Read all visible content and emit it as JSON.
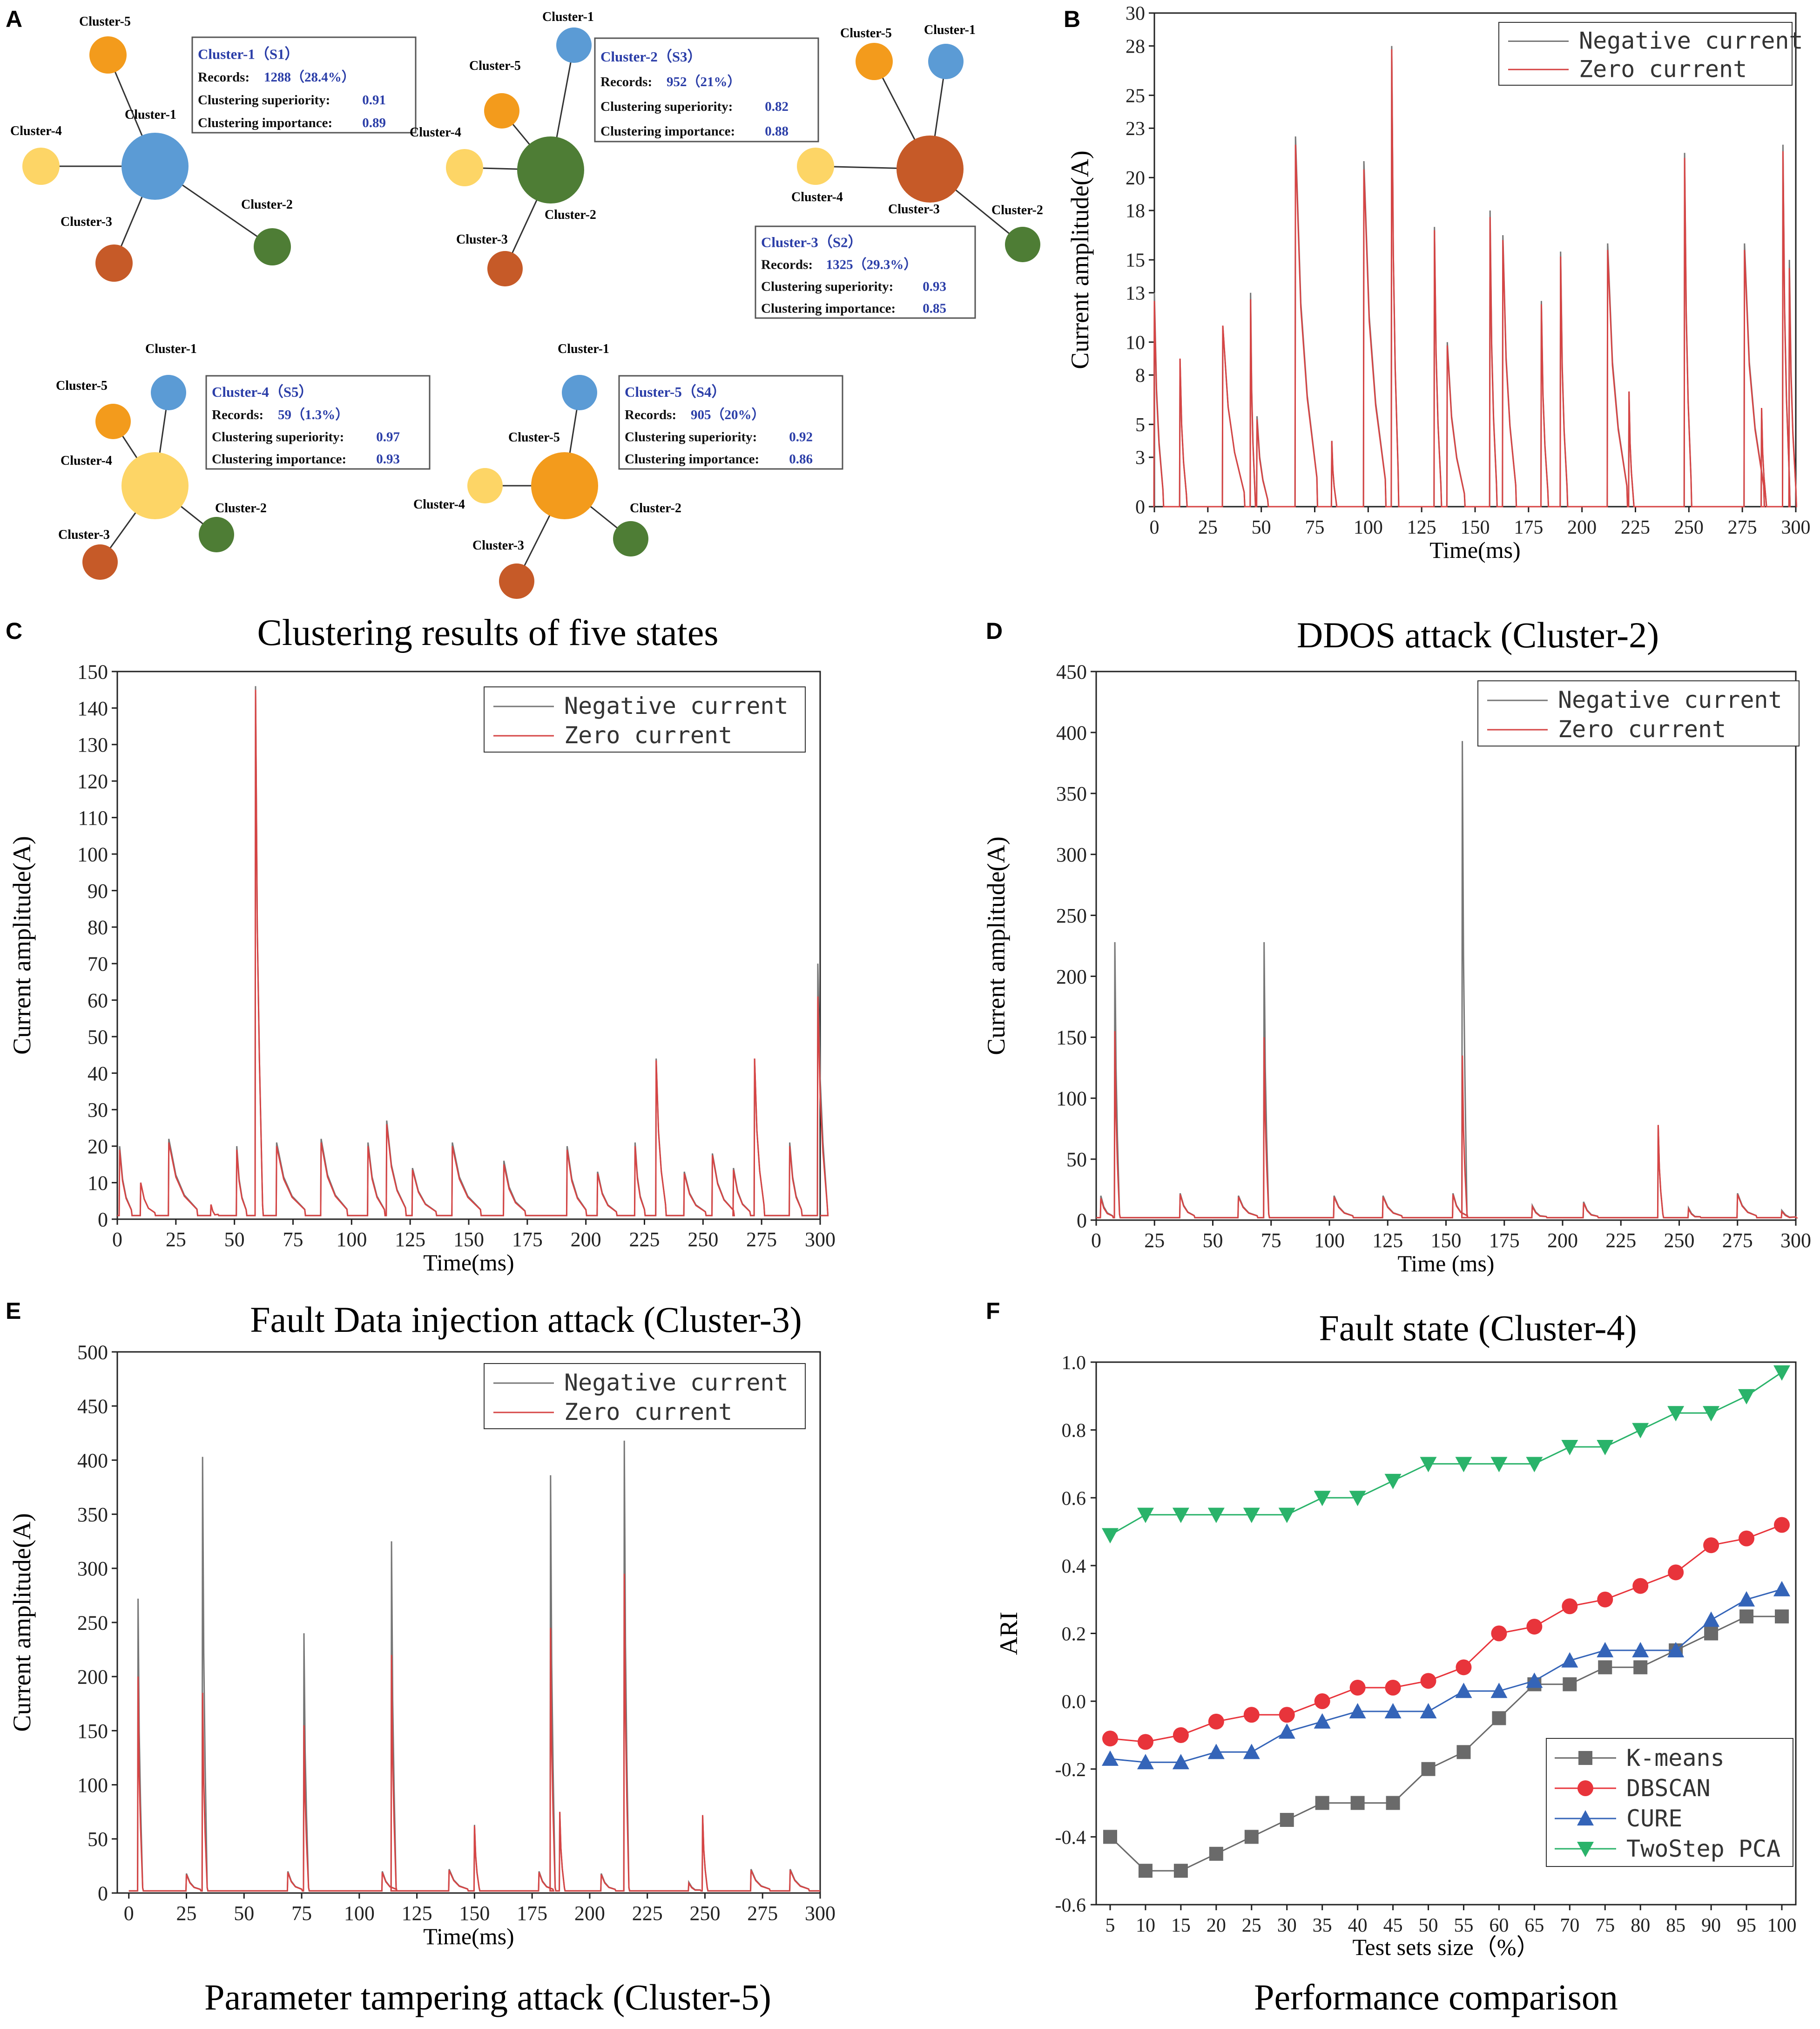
{
  "colors": {
    "blue": "#5b9bd5",
    "orange": "#f39b1c",
    "yellow": "#fdd566",
    "green": "#4e7d35",
    "rust": "#c65a28",
    "red_line": "#d64545",
    "gray_line": "#777777",
    "info_title": "#2b3ea8",
    "info_value": "#2b3ea8",
    "k_means": "#6a6a6a",
    "dbscan": "#e8343b",
    "cure": "#3464b8",
    "twostep": "#2ab36a"
  },
  "panel_labels": [
    "A",
    "B",
    "C",
    "D",
    "E",
    "F"
  ],
  "panelA": {
    "caption": "Clustering results of five states",
    "node_labels": [
      "Cluster-1",
      "Cluster-2",
      "Cluster-3",
      "Cluster-4",
      "Cluster-5"
    ],
    "info_field_labels": [
      "Records:",
      "Clustering superiority:",
      "Clustering importance:"
    ],
    "networks": [
      {
        "center": "Cluster-1",
        "title": "Cluster-1（S1）",
        "records": "1288（28.4%）",
        "superiority": "0.91",
        "importance": "0.89"
      },
      {
        "center": "Cluster-2",
        "title": "Cluster-2（S3）",
        "records": "952（21%）",
        "superiority": "0.82",
        "importance": "0.88"
      },
      {
        "center": "Cluster-3",
        "title": "Cluster-3（S2）",
        "records": "1325（29.3%）",
        "superiority": "0.93",
        "importance": "0.85"
      },
      {
        "center": "Cluster-4",
        "title": "Cluster-4（S5）",
        "records": "59（1.3%）",
        "superiority": "0.97",
        "importance": "0.93"
      },
      {
        "center": "Cluster-5",
        "title": "Cluster-5（S4）",
        "records": "905（20%）",
        "superiority": "0.92",
        "importance": "0.86"
      }
    ]
  },
  "chart_data": [
    {
      "panel": "B",
      "type": "line",
      "title": "DDOS  attack (Cluster-2)",
      "xlabel": "Time(ms)",
      "ylabel": "Current amplitude(A)",
      "xlim": [
        0,
        300
      ],
      "ylim": [
        0,
        30
      ],
      "xticks": [
        0,
        25,
        50,
        75,
        100,
        125,
        150,
        175,
        200,
        225,
        250,
        275,
        300
      ],
      "yticks": [
        0,
        3,
        5,
        8,
        10,
        13,
        15,
        18,
        20,
        23,
        25,
        28,
        30
      ],
      "legend": [
        "Negative current",
        "Zero current"
      ],
      "legend_position": "top-right",
      "baseline": 0,
      "spikes": [
        {
          "t": 0,
          "neg": 13,
          "zero": 12.5,
          "w": 4
        },
        {
          "t": 12,
          "neg": 9,
          "zero": 9,
          "w": 3
        },
        {
          "t": 32,
          "neg": 11,
          "zero": 11,
          "w": 10
        },
        {
          "t": 45,
          "neg": 13,
          "zero": 12.6,
          "w": 2
        },
        {
          "t": 48,
          "neg": 5.5,
          "zero": 5.3,
          "w": 5
        },
        {
          "t": 66,
          "neg": 22.5,
          "zero": 22,
          "w": 10
        },
        {
          "t": 83,
          "neg": 4,
          "zero": 4,
          "w": 2
        },
        {
          "t": 98,
          "neg": 21,
          "zero": 20.5,
          "w": 10
        },
        {
          "t": 111,
          "neg": 28,
          "zero": 27.8,
          "w": 3
        },
        {
          "t": 131,
          "neg": 17,
          "zero": 16.8,
          "w": 3
        },
        {
          "t": 137,
          "neg": 10,
          "zero": 9.8,
          "w": 8
        },
        {
          "t": 157,
          "neg": 18,
          "zero": 17.6,
          "w": 3
        },
        {
          "t": 163,
          "neg": 16.5,
          "zero": 16.2,
          "w": 6
        },
        {
          "t": 181,
          "neg": 12.5,
          "zero": 12.3,
          "w": 3
        },
        {
          "t": 190,
          "neg": 15.5,
          "zero": 15.2,
          "w": 3
        },
        {
          "t": 212,
          "neg": 16,
          "zero": 15.6,
          "w": 9
        },
        {
          "t": 222,
          "neg": 7,
          "zero": 7,
          "w": 2
        },
        {
          "t": 248,
          "neg": 21.5,
          "zero": 21.2,
          "w": 3
        },
        {
          "t": 276,
          "neg": 16,
          "zero": 15.6,
          "w": 9
        },
        {
          "t": 284,
          "neg": 6,
          "zero": 6,
          "w": 2
        },
        {
          "t": 294,
          "neg": 22,
          "zero": 21.6,
          "w": 3
        },
        {
          "t": 297,
          "neg": 15,
          "zero": 14.5,
          "w": 3
        }
      ]
    },
    {
      "panel": "C",
      "type": "line",
      "title": "Fault Data injection  attack (Cluster-3)",
      "xlabel": "Time(ms)",
      "ylabel": "Current amplitude(A)",
      "xlim": [
        0,
        300
      ],
      "ylim": [
        0,
        150
      ],
      "xticks": [
        0,
        25,
        50,
        75,
        100,
        125,
        150,
        175,
        200,
        225,
        250,
        275,
        300
      ],
      "yticks": [
        0,
        10,
        20,
        30,
        40,
        50,
        60,
        70,
        80,
        90,
        100,
        110,
        120,
        130,
        140,
        150
      ],
      "legend": [
        "Negative current",
        "Zero current"
      ],
      "legend_position": "top-right",
      "baseline": 1,
      "spikes": [
        {
          "t": 1,
          "neg": 20,
          "zero": 19,
          "w": 5
        },
        {
          "t": 10,
          "neg": 10,
          "zero": 10,
          "w": 6
        },
        {
          "t": 22,
          "neg": 22,
          "zero": 21,
          "w": 12
        },
        {
          "t": 40,
          "neg": 4,
          "zero": 4,
          "w": 3
        },
        {
          "t": 51,
          "neg": 20,
          "zero": 19,
          "w": 4
        },
        {
          "t": 59,
          "neg": 146,
          "zero": 145,
          "w": 3
        },
        {
          "t": 68,
          "neg": 21,
          "zero": 20,
          "w": 12
        },
        {
          "t": 87,
          "neg": 22,
          "zero": 21,
          "w": 11
        },
        {
          "t": 107,
          "neg": 21,
          "zero": 20,
          "w": 7
        },
        {
          "t": 115,
          "neg": 27,
          "zero": 26,
          "w": 8
        },
        {
          "t": 126,
          "neg": 14,
          "zero": 13.5,
          "w": 10
        },
        {
          "t": 143,
          "neg": 21,
          "zero": 20,
          "w": 12
        },
        {
          "t": 165,
          "neg": 16,
          "zero": 15,
          "w": 9
        },
        {
          "t": 192,
          "neg": 20,
          "zero": 19,
          "w": 8
        },
        {
          "t": 205,
          "neg": 13,
          "zero": 12.5,
          "w": 8
        },
        {
          "t": 221,
          "neg": 21,
          "zero": 20,
          "w": 4
        },
        {
          "t": 230,
          "neg": 44,
          "zero": 43.5,
          "w": 4
        },
        {
          "t": 242,
          "neg": 13,
          "zero": 12.5,
          "w": 9
        },
        {
          "t": 254,
          "neg": 18,
          "zero": 17.5,
          "w": 9
        },
        {
          "t": 263,
          "neg": 14,
          "zero": 13.5,
          "w": 7
        },
        {
          "t": 272,
          "neg": 44,
          "zero": 44,
          "w": 4
        },
        {
          "t": 287,
          "neg": 21,
          "zero": 20,
          "w": 5
        },
        {
          "t": 299,
          "neg": 70,
          "zero": 61,
          "w": 4
        }
      ]
    },
    {
      "panel": "D",
      "type": "line",
      "title": "Fault state (Cluster-4)",
      "xlabel": "Time (ms)",
      "ylabel": "Current amplitude(A)",
      "xlim": [
        0,
        300
      ],
      "ylim": [
        0,
        450
      ],
      "xticks": [
        0,
        25,
        50,
        75,
        100,
        125,
        150,
        175,
        200,
        225,
        250,
        275,
        300
      ],
      "yticks": [
        0,
        50,
        100,
        150,
        200,
        250,
        300,
        350,
        400,
        450
      ],
      "legend": [
        "Negative current",
        "Zero current"
      ],
      "legend_position": "top-right",
      "baseline": 2,
      "spikes": [
        {
          "t": 2,
          "neg": 20,
          "zero": 18,
          "w": 5
        },
        {
          "t": 8,
          "neg": 228,
          "zero": 155,
          "w": 2
        },
        {
          "t": 36,
          "neg": 22,
          "zero": 21,
          "w": 6
        },
        {
          "t": 61,
          "neg": 20,
          "zero": 19,
          "w": 8
        },
        {
          "t": 72,
          "neg": 228,
          "zero": 150,
          "w": 2
        },
        {
          "t": 102,
          "neg": 20,
          "zero": 19,
          "w": 8
        },
        {
          "t": 123,
          "neg": 20,
          "zero": 19,
          "w": 8
        },
        {
          "t": 153,
          "neg": 22,
          "zero": 21,
          "w": 6
        },
        {
          "t": 157,
          "neg": 393,
          "zero": 135,
          "w": 2
        },
        {
          "t": 187,
          "neg": 12,
          "zero": 11,
          "w": 6
        },
        {
          "t": 209,
          "neg": 15,
          "zero": 14,
          "w": 6
        },
        {
          "t": 241,
          "neg": 78,
          "zero": 78,
          "w": 2
        },
        {
          "t": 254,
          "neg": 10,
          "zero": 9,
          "w": 5
        },
        {
          "t": 275,
          "neg": 22,
          "zero": 21,
          "w": 8
        },
        {
          "t": 294,
          "neg": 8,
          "zero": 7,
          "w": 6
        }
      ]
    },
    {
      "panel": "E",
      "type": "line",
      "title": "Parameter tampering attack  (Cluster-5)",
      "xlabel": "Time(ms)",
      "ylabel": "Current amplitude(A)",
      "xlim": [
        -5,
        300
      ],
      "ylim": [
        0,
        500
      ],
      "xticks": [
        0,
        25,
        50,
        75,
        100,
        125,
        150,
        175,
        200,
        225,
        250,
        275,
        300
      ],
      "yticks": [
        0,
        50,
        100,
        150,
        200,
        250,
        300,
        350,
        400,
        450,
        500
      ],
      "legend": [
        "Negative current",
        "Zero current"
      ],
      "legend_position": "top-right",
      "baseline": 2,
      "spikes": [
        {
          "t": 4,
          "neg": 272,
          "zero": 200,
          "w": 2
        },
        {
          "t": 32,
          "neg": 403,
          "zero": 185,
          "w": 2
        },
        {
          "t": 76,
          "neg": 240,
          "zero": 155,
          "w": 2
        },
        {
          "t": 114,
          "neg": 325,
          "zero": 220,
          "w": 2
        },
        {
          "t": 150,
          "neg": 63,
          "zero": 62,
          "w": 2
        },
        {
          "t": 183,
          "neg": 386,
          "zero": 245,
          "w": 2
        },
        {
          "t": 187,
          "neg": 75,
          "zero": 75,
          "w": 2
        },
        {
          "t": 215,
          "neg": 418,
          "zero": 295,
          "w": 2
        },
        {
          "t": 249,
          "neg": 72,
          "zero": 72,
          "w": 2
        },
        {
          "t": 25,
          "neg": 18,
          "zero": 17,
          "w": 6
        },
        {
          "t": 69,
          "neg": 20,
          "zero": 19,
          "w": 6
        },
        {
          "t": 110,
          "neg": 20,
          "zero": 19,
          "w": 6
        },
        {
          "t": 139,
          "neg": 22,
          "zero": 21,
          "w": 8
        },
        {
          "t": 178,
          "neg": 20,
          "zero": 19,
          "w": 6
        },
        {
          "t": 205,
          "neg": 18,
          "zero": 17,
          "w": 6
        },
        {
          "t": 243,
          "neg": 10,
          "zero": 9,
          "w": 5
        },
        {
          "t": 270,
          "neg": 22,
          "zero": 21,
          "w": 8
        },
        {
          "t": 287,
          "neg": 22,
          "zero": 21,
          "w": 8
        }
      ]
    },
    {
      "panel": "F",
      "type": "line",
      "title": "Performance comparison",
      "xlabel": "Test sets size（%）",
      "ylabel": "ARI",
      "xlim": [
        5,
        100
      ],
      "ylim": [
        -0.6,
        1.0
      ],
      "xticks": [
        5,
        10,
        15,
        20,
        25,
        30,
        35,
        40,
        45,
        50,
        55,
        60,
        65,
        70,
        75,
        80,
        85,
        90,
        95,
        100
      ],
      "yticks": [
        "-0.6",
        "-0.4",
        "-0.2",
        "0.0",
        "0.2",
        "0.4",
        "0.6",
        "0.8",
        "1.0"
      ],
      "legend_position": "bottom-right",
      "x": [
        5,
        10,
        15,
        20,
        25,
        30,
        35,
        40,
        45,
        50,
        55,
        60,
        65,
        70,
        75,
        80,
        85,
        90,
        95,
        100
      ],
      "series": [
        {
          "name": "K-means",
          "marker": "square",
          "values": [
            -0.4,
            -0.5,
            -0.5,
            -0.45,
            -0.4,
            -0.35,
            -0.3,
            -0.3,
            -0.3,
            -0.2,
            -0.15,
            -0.05,
            0.05,
            0.05,
            0.1,
            0.1,
            0.15,
            0.2,
            0.25,
            0.25
          ]
        },
        {
          "name": "DBSCAN",
          "marker": "circle",
          "values": [
            -0.11,
            -0.12,
            -0.1,
            -0.06,
            -0.04,
            -0.04,
            0.0,
            0.04,
            0.04,
            0.06,
            0.1,
            0.2,
            0.22,
            0.28,
            0.3,
            0.34,
            0.38,
            0.46,
            0.48,
            0.52
          ]
        },
        {
          "name": "CURE",
          "marker": "triangle-up",
          "values": [
            -0.17,
            -0.18,
            -0.18,
            -0.15,
            -0.15,
            -0.09,
            -0.06,
            -0.03,
            -0.03,
            -0.03,
            0.03,
            0.03,
            0.06,
            0.12,
            0.15,
            0.15,
            0.15,
            0.24,
            0.3,
            0.33
          ]
        },
        {
          "name": "TwoStep PCA",
          "marker": "triangle-down",
          "values": [
            0.49,
            0.55,
            0.55,
            0.55,
            0.55,
            0.55,
            0.6,
            0.6,
            0.65,
            0.7,
            0.7,
            0.7,
            0.7,
            0.75,
            0.75,
            0.8,
            0.85,
            0.85,
            0.9,
            0.97
          ]
        }
      ]
    }
  ]
}
